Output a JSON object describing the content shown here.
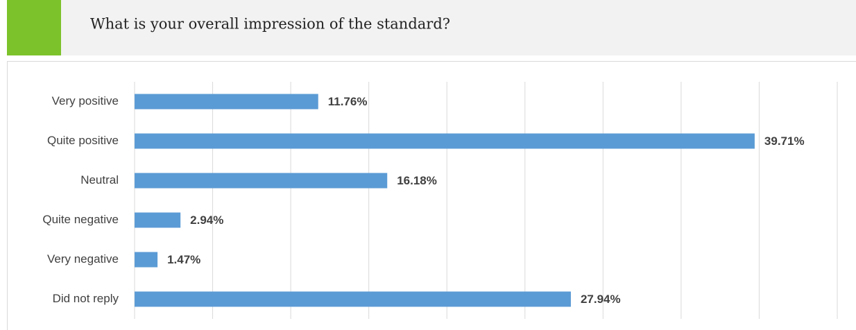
{
  "chart_data": {
    "type": "bar",
    "orientation": "horizontal",
    "title": "What is your overall impression of the standard?",
    "categories": [
      "Very positive",
      "Quite positive",
      "Neutral",
      "Quite negative",
      "Very negative",
      "Did not reply"
    ],
    "values": [
      11.76,
      39.71,
      16.18,
      2.94,
      1.47,
      27.94
    ],
    "value_labels": [
      "11.76%",
      "39.71%",
      "16.18%",
      "2.94%",
      "1.47%",
      "27.94%"
    ],
    "color": "#5b9bd5",
    "xlim": [
      0,
      45
    ],
    "xticks": [
      0,
      5,
      10,
      15,
      20,
      25,
      30,
      35,
      40,
      45
    ],
    "grid": true
  }
}
